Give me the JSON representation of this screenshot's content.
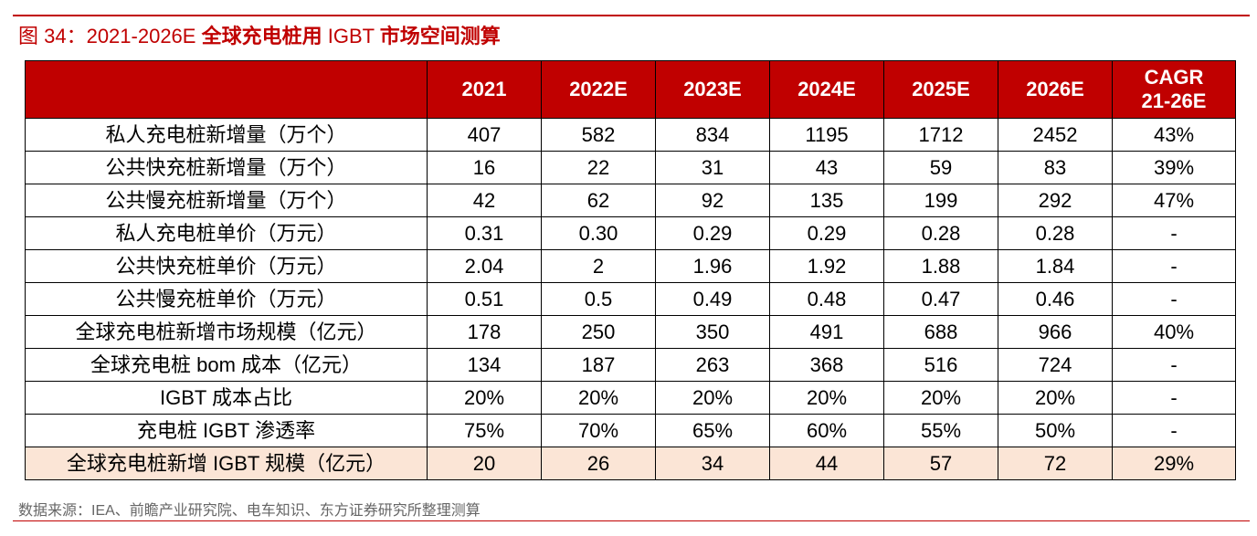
{
  "figure": {
    "title_prefix": "图 34：2021-2026E ",
    "title_bold": "全球充电桩用",
    "title_mid": " IGBT ",
    "title_bold2": "市场空间测算",
    "source": "数据来源：IEA、前瞻产业研究院、电车知识、东方证券研究所整理测算"
  },
  "table": {
    "columns": [
      "",
      "2021",
      "2022E",
      "2023E",
      "2024E",
      "2025E",
      "2026E"
    ],
    "cagr_line1": "CAGR",
    "cagr_line2": "21-26E",
    "rows": [
      {
        "label": "私人充电桩新增量（万个）",
        "values": [
          "407",
          "582",
          "834",
          "1195",
          "1712",
          "2452",
          "43%"
        ]
      },
      {
        "label": "公共快充桩新增量（万个）",
        "values": [
          "16",
          "22",
          "31",
          "43",
          "59",
          "83",
          "39%"
        ]
      },
      {
        "label": "公共慢充桩新增量（万个）",
        "values": [
          "42",
          "62",
          "92",
          "135",
          "199",
          "292",
          "47%"
        ]
      },
      {
        "label": "私人充电桩单价（万元）",
        "values": [
          "0.31",
          "0.30",
          "0.29",
          "0.29",
          "0.28",
          "0.28",
          "-"
        ]
      },
      {
        "label": "公共快充桩单价（万元）",
        "values": [
          "2.04",
          "2",
          "1.96",
          "1.92",
          "1.88",
          "1.84",
          "-"
        ]
      },
      {
        "label": "公共慢充桩单价（万元）",
        "values": [
          "0.51",
          "0.5",
          "0.49",
          "0.48",
          "0.47",
          "0.46",
          "-"
        ]
      },
      {
        "label": "全球充电桩新增市场规模（亿元）",
        "values": [
          "178",
          "250",
          "350",
          "491",
          "688",
          "966",
          "40%"
        ]
      },
      {
        "label": "全球充电桩 bom 成本（亿元）",
        "values": [
          "134",
          "187",
          "263",
          "368",
          "516",
          "724",
          "-"
        ]
      },
      {
        "label": "IGBT 成本占比",
        "values": [
          "20%",
          "20%",
          "20%",
          "20%",
          "20%",
          "20%",
          "-"
        ]
      },
      {
        "label": "充电桩 IGBT 渗透率",
        "values": [
          "75%",
          "70%",
          "65%",
          "60%",
          "55%",
          "50%",
          "-"
        ]
      },
      {
        "label": "全球充电桩新增 IGBT 规模（亿元）",
        "values": [
          "20",
          "26",
          "34",
          "44",
          "57",
          "72",
          "29%"
        ]
      }
    ]
  },
  "colors": {
    "accent": "#c00000",
    "highlight_row": "#fbe5d6"
  }
}
